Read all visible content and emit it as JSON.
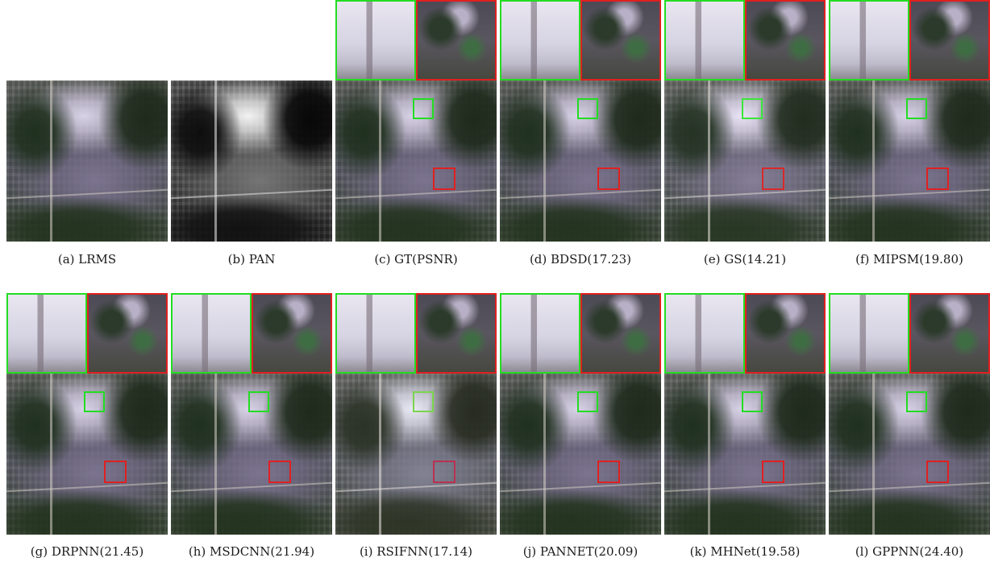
{
  "captions": {
    "a": "(a)  LRMS",
    "b": "(b)  PAN",
    "c": "(c)  GT(PSNR)",
    "d": "(d)  BDSD(17.23)",
    "e": "(e)  GS(14.21)",
    "f": "(f)  MIPSM(19.80)",
    "g": "(g)  DRPNN(21.45)",
    "h": "(h)  MSDCNN(21.94)",
    "i": "(i)  RSIFNN(17.14)",
    "j": "(j)  PANNET(20.09)",
    "k": "(k)  MHNet(19.58)",
    "l": "(l)  GPPNN(24.40)"
  },
  "colors": {
    "zoom_box_1": "#22dd22",
    "zoom_box_2": "#e02020"
  }
}
